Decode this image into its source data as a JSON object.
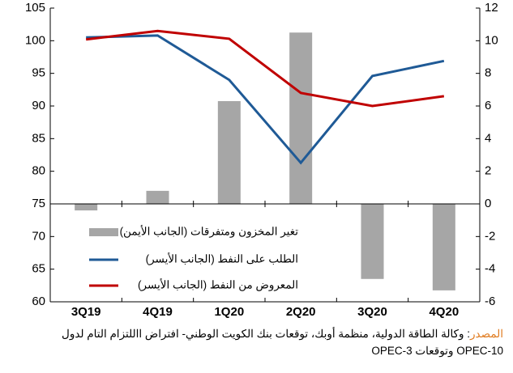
{
  "chart_data": {
    "type": "combo",
    "categories": [
      "3Q19",
      "4Q19",
      "1Q20",
      "2Q20",
      "3Q20",
      "4Q20"
    ],
    "series": [
      {
        "name": "تغير المخزون ومتفرقات (الجانب الأيمن)",
        "type": "bar",
        "axis": "y2",
        "color": "#a6a6a6",
        "values": [
          -0.4,
          0.8,
          6.3,
          10.5,
          -4.6,
          -5.3
        ]
      },
      {
        "name": "الطلب على النفط (الجانب الأيسر)",
        "type": "line",
        "axis": "y",
        "color": "#1f5a96",
        "values": [
          100.5,
          100.8,
          94.0,
          81.3,
          94.6,
          96.9
        ]
      },
      {
        "name": "المعروض من النفط (الجانب الأيسر)",
        "type": "line",
        "axis": "y",
        "color": "#c00000",
        "values": [
          100.2,
          101.5,
          100.3,
          92.0,
          90.0,
          91.5
        ]
      }
    ],
    "ylim": [
      60,
      105
    ],
    "yticks": [
      60,
      65,
      70,
      75,
      80,
      85,
      90,
      95,
      100,
      105
    ],
    "y2lim": [
      -6,
      12
    ],
    "y2ticks": [
      -6,
      -4,
      -2,
      0,
      2,
      4,
      6,
      8,
      10,
      12
    ],
    "source_label": "المصدر",
    "source_lines": [
      ": وكالة الطاقة الدولية، منظمة أوبك، توقعات بنك الكويت الوطني- افتراض االلتزام التام لدول",
      "OPEC-10 وتوقعات OPEC-3"
    ]
  }
}
